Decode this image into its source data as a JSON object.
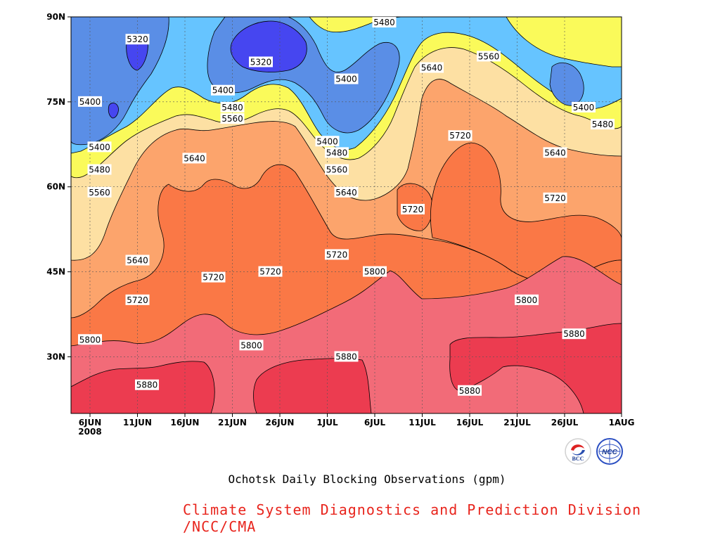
{
  "chart_data": {
    "type": "contour",
    "title": "Ochotsk Daily Blocking Observations (gpm)",
    "x_ticks": [
      "6JUN",
      "11JUN",
      "16JUN",
      "21JUN",
      "26JUN",
      "1JUL",
      "6JUL",
      "11JUL",
      "16JUL",
      "21JUL",
      "26JUL",
      "1AUG"
    ],
    "x_year_label": "2008",
    "y_ticks": [
      "30N",
      "45N",
      "60N",
      "75N",
      "90N"
    ],
    "x_range": [
      "2008-06-04",
      "2008-08-01"
    ],
    "y_range": [
      20,
      90
    ],
    "contour_levels": [
      5320,
      5400,
      5480,
      5560,
      5640,
      5720,
      5800,
      5880
    ],
    "contour_labels": [
      {
        "text": "5320",
        "x": "2008-06-11",
        "y": 86
      },
      {
        "text": "5320",
        "x": "2008-06-24",
        "y": 82
      },
      {
        "text": "5400",
        "x": "2008-06-06",
        "y": 75
      },
      {
        "text": "5400",
        "x": "2008-06-20",
        "y": 77
      },
      {
        "text": "5400",
        "x": "2008-07-03",
        "y": 79
      },
      {
        "text": "5400",
        "x": "2008-07-01",
        "y": 68
      },
      {
        "text": "5400",
        "x": "2008-06-07",
        "y": 67
      },
      {
        "text": "5400",
        "x": "2008-07-28",
        "y": 74
      },
      {
        "text": "5480",
        "x": "2008-07-07",
        "y": 89
      },
      {
        "text": "5480",
        "x": "2008-06-21",
        "y": 74
      },
      {
        "text": "5480",
        "x": "2008-07-02",
        "y": 66
      },
      {
        "text": "5480",
        "x": "2008-06-07",
        "y": 63
      },
      {
        "text": "5480",
        "x": "2008-07-30",
        "y": 71
      },
      {
        "text": "5560",
        "x": "2008-07-18",
        "y": 83
      },
      {
        "text": "5560",
        "x": "2008-06-21",
        "y": 72
      },
      {
        "text": "5560",
        "x": "2008-07-02",
        "y": 63
      },
      {
        "text": "5560",
        "x": "2008-06-07",
        "y": 59
      },
      {
        "text": "5640",
        "x": "2008-07-12",
        "y": 81
      },
      {
        "text": "5640",
        "x": "2008-06-17",
        "y": 65
      },
      {
        "text": "5640",
        "x": "2008-07-03",
        "y": 59
      },
      {
        "text": "5640",
        "x": "2008-06-11",
        "y": 47
      },
      {
        "text": "5640",
        "x": "2008-07-25",
        "y": 66
      },
      {
        "text": "5720",
        "x": "2008-07-15",
        "y": 69
      },
      {
        "text": "5720",
        "x": "2008-07-10",
        "y": 56
      },
      {
        "text": "5720",
        "x": "2008-07-25",
        "y": 58
      },
      {
        "text": "5720",
        "x": "2008-06-19",
        "y": 44
      },
      {
        "text": "5720",
        "x": "2008-06-25",
        "y": 45
      },
      {
        "text": "5720",
        "x": "2008-07-02",
        "y": 48
      },
      {
        "text": "5720",
        "x": "2008-06-11",
        "y": 40
      },
      {
        "text": "5800",
        "x": "2008-07-06",
        "y": 45
      },
      {
        "text": "5800",
        "x": "2008-07-22",
        "y": 40
      },
      {
        "text": "5800",
        "x": "2008-06-23",
        "y": 32
      },
      {
        "text": "5800",
        "x": "2008-06-06",
        "y": 33
      },
      {
        "text": "5880",
        "x": "2008-07-03",
        "y": 30
      },
      {
        "text": "5880",
        "x": "2008-07-27",
        "y": 34
      },
      {
        "text": "5880",
        "x": "2008-06-12",
        "y": 25
      },
      {
        "text": "5880",
        "x": "2008-07-16",
        "y": 24
      }
    ],
    "colors": {
      "lt5320": "#4646f0",
      "5320-5400": "#5a8ee6",
      "5400-5480": "#66c4ff",
      "5480-5560": "#fafa5a",
      "5560-5640": "#fde0a3",
      "5640-5720": "#fca46c",
      "5720-5800": "#fa7846",
      "5800-5880": "#f26b78",
      "gt5880": "#ec3c50"
    }
  },
  "caption": "Ochotsk Daily Blocking Observations (gpm)",
  "credit": "Climate System Diagnostics and Prediction Division /NCC/CMA",
  "logos": {
    "left": "BCC",
    "right": "NCC"
  }
}
